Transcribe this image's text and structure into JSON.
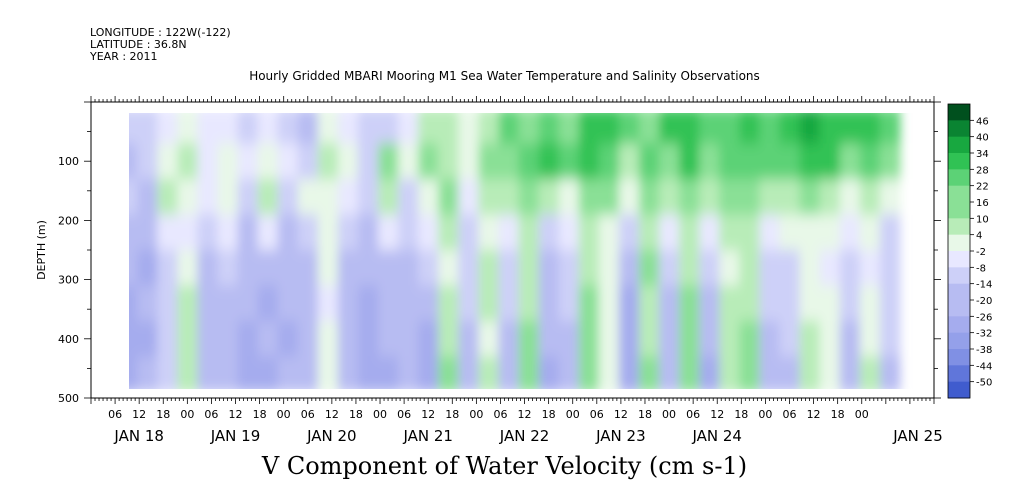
{
  "header": {
    "longitude": "LONGITUDE : 122W(-122)",
    "latitude": "LATITUDE : 36.8N",
    "year": "YEAR : 2011"
  },
  "title": "Hourly Gridded MBARI Mooring M1 Sea Water Temperature and Salinity Observations",
  "bottom_title": "V Component of Water Velocity (cm s-1)",
  "chart_data": {
    "type": "heatmap",
    "title": "Hourly Gridded MBARI Mooring M1 Sea Water Temperature and Salinity Observations",
    "variable": "V Component of Water Velocity (cm s-1)",
    "ylabel": "DEPTH (m)",
    "ylim": [
      500,
      0
    ],
    "y_ticks": [
      100,
      200,
      300,
      400,
      500
    ],
    "x_hour_ticks": [
      "06",
      "12",
      "18",
      "00",
      "06",
      "12",
      "18",
      "00",
      "06",
      "12",
      "18",
      "00",
      "06",
      "12",
      "18",
      "00",
      "06",
      "12",
      "18",
      "00",
      "06",
      "12",
      "18",
      "00",
      "06",
      "12",
      "18",
      "00",
      "06",
      "12",
      "18",
      "00"
    ],
    "x_date_labels": [
      "JAN 18",
      "JAN 19",
      "JAN 20",
      "JAN 21",
      "JAN 22",
      "JAN 23",
      "JAN 24",
      "JAN 25"
    ],
    "x_range_hours": [
      0,
      210
    ],
    "data_x_range_hours": [
      9,
      202
    ],
    "data_depth_range_m": [
      20,
      490
    ],
    "colorbar": {
      "labels": [
        "46",
        "40",
        "34",
        "28",
        "22",
        "16",
        "10",
        "4",
        "-2",
        "-8",
        "-14",
        "-20",
        "-26",
        "-32",
        "-38",
        "-44",
        "-50"
      ],
      "min": -50,
      "max": 50
    },
    "grid": false,
    "columns_hours": [
      9,
      14,
      19,
      24,
      29,
      34,
      39,
      44,
      49,
      54,
      59,
      64,
      69,
      74,
      79,
      84,
      89,
      94,
      99,
      104,
      109,
      114,
      119,
      124,
      129,
      134,
      139,
      144,
      149,
      154,
      159,
      164,
      169,
      174,
      179,
      184,
      189,
      194,
      199
    ],
    "rows_depth_m": [
      40,
      100,
      160,
      220,
      280,
      340,
      400,
      460
    ],
    "values": [
      [
        -8,
        -12,
        -4,
        2,
        -6,
        -4,
        -10,
        -2,
        -8,
        -14,
        4,
        -4,
        -10,
        -8,
        -6,
        10,
        8,
        2,
        10,
        20,
        16,
        22,
        16,
        26,
        28,
        24,
        16,
        26,
        30,
        24,
        22,
        28,
        24,
        30,
        36,
        28,
        30,
        26,
        20
      ],
      [
        -14,
        -10,
        4,
        8,
        -2,
        6,
        -6,
        4,
        -6,
        -8,
        10,
        6,
        -12,
        14,
        0,
        14,
        12,
        4,
        16,
        18,
        22,
        26,
        20,
        28,
        22,
        12,
        22,
        18,
        26,
        14,
        20,
        24,
        22,
        24,
        28,
        26,
        16,
        22,
        18
      ],
      [
        -12,
        -14,
        8,
        6,
        -4,
        4,
        -12,
        10,
        -10,
        2,
        6,
        -4,
        -10,
        8,
        -8,
        6,
        18,
        -2,
        12,
        10,
        14,
        12,
        6,
        14,
        16,
        2,
        16,
        10,
        18,
        8,
        14,
        16,
        8,
        10,
        14,
        10,
        4,
        12,
        2
      ],
      [
        -16,
        -18,
        -6,
        -2,
        -10,
        -6,
        -14,
        -2,
        -16,
        -8,
        2,
        -10,
        -16,
        -6,
        -12,
        -2,
        8,
        -8,
        6,
        -4,
        10,
        -8,
        -2,
        8,
        6,
        -10,
        12,
        -2,
        12,
        -6,
        8,
        10,
        -4,
        0,
        4,
        2,
        -6,
        6,
        -8
      ],
      [
        -18,
        -20,
        -10,
        4,
        -14,
        -12,
        -16,
        -18,
        -18,
        -14,
        2,
        -16,
        -18,
        -14,
        -16,
        -12,
        6,
        -10,
        10,
        -8,
        8,
        -14,
        -10,
        10,
        4,
        -16,
        14,
        -10,
        12,
        -12,
        6,
        10,
        -10,
        -8,
        2,
        -4,
        -10,
        -2,
        -12
      ],
      [
        -20,
        -18,
        -12,
        8,
        -16,
        -14,
        -18,
        -20,
        -16,
        -18,
        -2,
        -14,
        -20,
        -16,
        -14,
        -18,
        10,
        -12,
        8,
        -12,
        10,
        -16,
        -12,
        14,
        2,
        -20,
        10,
        -14,
        14,
        -16,
        8,
        12,
        -12,
        -10,
        6,
        2,
        -12,
        4,
        -10
      ],
      [
        -20,
        -20,
        -10,
        10,
        -16,
        -16,
        -20,
        -18,
        -20,
        -16,
        4,
        -16,
        -20,
        -18,
        -16,
        -20,
        12,
        -14,
        6,
        -16,
        14,
        -18,
        -14,
        16,
        4,
        -22,
        12,
        -16,
        16,
        -18,
        10,
        14,
        -14,
        -12,
        10,
        4,
        -14,
        6,
        -12
      ],
      [
        -20,
        -18,
        -12,
        12,
        -18,
        -16,
        -20,
        -22,
        -18,
        -18,
        6,
        -18,
        -22,
        -20,
        -18,
        -22,
        14,
        -16,
        10,
        -18,
        16,
        -20,
        -16,
        18,
        6,
        -22,
        14,
        -18,
        18,
        -20,
        12,
        16,
        -16,
        -14,
        12,
        6,
        -16,
        10,
        -14
      ]
    ]
  }
}
